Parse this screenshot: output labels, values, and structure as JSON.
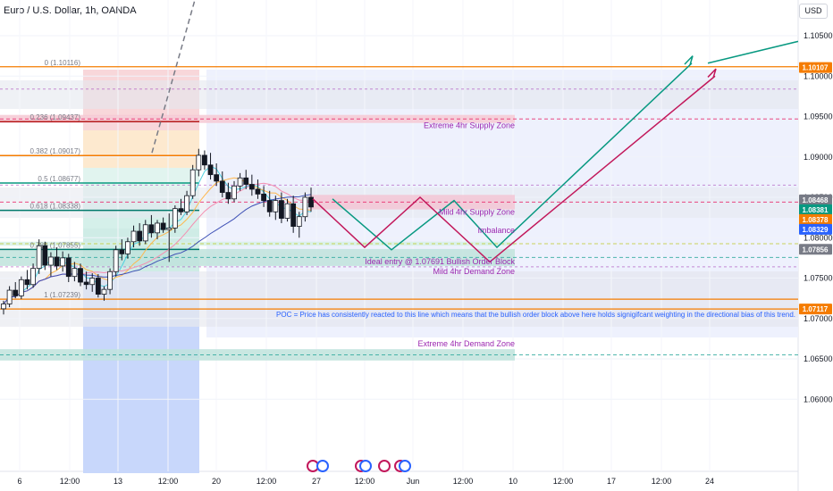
{
  "header": {
    "title": "Euro / U.S. Dollar, 1h, OANDA",
    "currency_button": "USD"
  },
  "colors": {
    "fib": "#f57c00",
    "supply": "#e91e63",
    "demand": "#26a69a",
    "blue_box": "#2962ff",
    "zone_label": "#9c27b0",
    "poc": "#2962ff",
    "teal_path": "#089981",
    "red_path": "#c2185b"
  },
  "chart_data": {
    "type": "candlestick",
    "symbol": "Euro / U.S. Dollar",
    "interval": "1h",
    "ylim": [
      1.054,
      1.112
    ],
    "y_ticks": [
      "1.10500",
      "1.10000",
      "1.09500",
      "1.09000",
      "1.08500",
      "1.08000",
      "1.07500",
      "1.07000",
      "1.06500",
      "1.06000"
    ],
    "x_ticks": [
      "6",
      "12:00",
      "13",
      "12:00",
      "20",
      "12:00",
      "27",
      "12:00",
      "Jun",
      "12:00",
      "10",
      "12:00",
      "17",
      "12:00",
      "24"
    ],
    "price_labels": [
      {
        "text": "1.10107",
        "value": 1.10107,
        "color": "#f57c00"
      },
      {
        "text": "1.08468",
        "value": 1.08468,
        "color": "#787b86"
      },
      {
        "text": "1.08381",
        "value": 1.08381,
        "color": "#089981"
      },
      {
        "text": "1.08378",
        "value": 1.08378,
        "color": "#f57c00"
      },
      {
        "text": "1.08329",
        "value": 1.08329,
        "color": "#2962ff"
      },
      {
        "text": "1.07856",
        "value": 1.07856,
        "color": "#787b86"
      },
      {
        "text": "1.07117",
        "value": 1.07117,
        "color": "#f57c00"
      }
    ],
    "fib_levels": [
      {
        "label": "0 (1.10116)",
        "ratio": 0,
        "value": 1.10116
      },
      {
        "label": "0.236 (1.09437)",
        "ratio": 0.236,
        "value": 1.09437
      },
      {
        "label": "0.382 (1.09017)",
        "ratio": 0.382,
        "value": 1.09017
      },
      {
        "label": "0.5 (1.08677)",
        "ratio": 0.5,
        "value": 1.08677
      },
      {
        "label": "0.618 (1.08338)",
        "ratio": 0.618,
        "value": 1.08338
      },
      {
        "label": "0.786 (1.07855)",
        "ratio": 0.786,
        "value": 1.07855
      },
      {
        "label": "1 (1.07239)",
        "ratio": 1,
        "value": 1.07239
      }
    ],
    "zones": [
      {
        "name": "Extreme 4hr Supply Zone",
        "top": 1.0952,
        "bottom": 1.0942
      },
      {
        "name": "Mild 4hr Supply Zone",
        "top": 1.0853,
        "bottom": 1.0835
      },
      {
        "name": "Imbalance",
        "top": 1.0795,
        "bottom": 1.079
      },
      {
        "name": "Mild 4hr Demand Zone",
        "top": 1.0786,
        "bottom": 1.0765
      },
      {
        "name": "Extreme 4hr Demand Zone",
        "top": 1.0662,
        "bottom": 1.0648
      }
    ],
    "annotations": {
      "entry": "Ideal entry @ 1.07691 Bullish Order Block",
      "imbalance": "Imbalance",
      "poc": "POC = Price has consistently reacted to this line which means that the bullish order block above here holds signigifcant weighting in the directional bias of this trend."
    },
    "candles": [
      [
        1.0712,
        1.0722,
        1.0705,
        1.0718
      ],
      [
        1.0718,
        1.074,
        1.0714,
        1.0735
      ],
      [
        1.0735,
        1.0745,
        1.0725,
        1.0728
      ],
      [
        1.0728,
        1.0752,
        1.0724,
        1.0748
      ],
      [
        1.0748,
        1.076,
        1.0736,
        1.0742
      ],
      [
        1.0742,
        1.0768,
        1.0738,
        1.0762
      ],
      [
        1.0762,
        1.0798,
        1.0755,
        1.079
      ],
      [
        1.079,
        1.0795,
        1.076,
        1.0766
      ],
      [
        1.0766,
        1.0782,
        1.0752,
        1.0776
      ],
      [
        1.0776,
        1.0788,
        1.076,
        1.0765
      ],
      [
        1.0765,
        1.0783,
        1.0758,
        1.0775
      ],
      [
        1.0775,
        1.078,
        1.0745,
        1.0752
      ],
      [
        1.0752,
        1.077,
        1.0746,
        1.0762
      ],
      [
        1.0762,
        1.0768,
        1.074,
        1.0745
      ],
      [
        1.0745,
        1.0758,
        1.0736,
        1.0742
      ],
      [
        1.0742,
        1.0756,
        1.0733,
        1.075
      ],
      [
        1.075,
        1.0755,
        1.0726,
        1.073
      ],
      [
        1.073,
        1.074,
        1.0722,
        1.0736
      ],
      [
        1.0736,
        1.0762,
        1.073,
        1.0758
      ],
      [
        1.0758,
        1.079,
        1.0752,
        1.0785
      ],
      [
        1.0785,
        1.0798,
        1.0772,
        1.078
      ],
      [
        1.078,
        1.08,
        1.0774,
        1.0795
      ],
      [
        1.0795,
        1.0815,
        1.0788,
        1.0808
      ],
      [
        1.0808,
        1.0818,
        1.079,
        1.0796
      ],
      [
        1.0796,
        1.0822,
        1.0792,
        1.0816
      ],
      [
        1.0816,
        1.0828,
        1.08,
        1.0806
      ],
      [
        1.0806,
        1.0822,
        1.0798,
        1.0818
      ],
      [
        1.0818,
        1.0825,
        1.0806,
        1.081
      ],
      [
        1.081,
        1.083,
        1.077,
        1.0812
      ],
      [
        1.0812,
        1.084,
        1.0806,
        1.0836
      ],
      [
        1.0836,
        1.0848,
        1.0828,
        1.0832
      ],
      [
        1.0832,
        1.0858,
        1.0828,
        1.0852
      ],
      [
        1.0852,
        1.089,
        1.0848,
        1.0884
      ],
      [
        1.0884,
        1.091,
        1.0876,
        1.0902
      ],
      [
        1.0902,
        1.0908,
        1.0884,
        1.089
      ],
      [
        1.089,
        1.0905,
        1.0872,
        1.0878
      ],
      [
        1.0878,
        1.0892,
        1.0864,
        1.087
      ],
      [
        1.087,
        1.0882,
        1.085,
        1.0856
      ],
      [
        1.0856,
        1.0868,
        1.0842,
        1.0848
      ],
      [
        1.0848,
        1.087,
        1.0844,
        1.0864
      ],
      [
        1.0864,
        1.088,
        1.0858,
        1.0874
      ],
      [
        1.0874,
        1.0884,
        1.086,
        1.0866
      ],
      [
        1.0866,
        1.0878,
        1.0852,
        1.086
      ],
      [
        1.086,
        1.0872,
        1.0848,
        1.0854
      ],
      [
        1.0854,
        1.0864,
        1.0838,
        1.0846
      ],
      [
        1.0846,
        1.0858,
        1.0826,
        1.0832
      ],
      [
        1.0832,
        1.0852,
        1.0822,
        1.0846
      ],
      [
        1.0846,
        1.0856,
        1.0818,
        1.0824
      ],
      [
        1.0824,
        1.0848,
        1.082,
        1.0842
      ],
      [
        1.0842,
        1.0852,
        1.0806,
        1.0814
      ],
      [
        1.0814,
        1.0832,
        1.08,
        1.0826
      ],
      [
        1.0826,
        1.0856,
        1.082,
        1.085
      ],
      [
        1.085,
        1.0862,
        1.0832,
        1.0838
      ]
    ]
  }
}
